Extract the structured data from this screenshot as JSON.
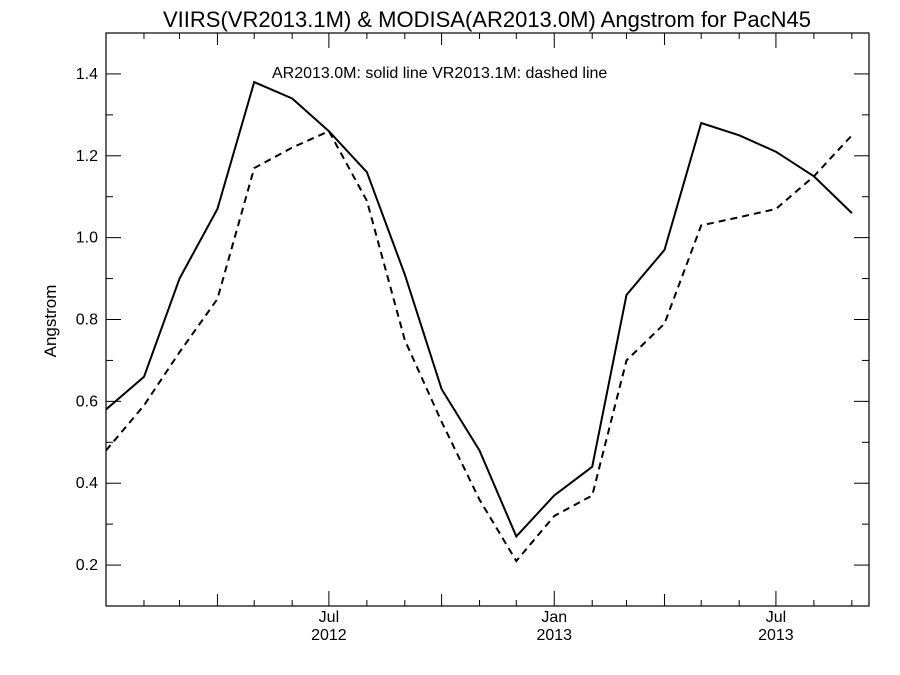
{
  "chart_data": {
    "type": "line",
    "title": "VIIRS(VR2013.1M) & MODISA(AR2013.0M)  Angstrom for PacN45",
    "annotation": "AR2013.0M: solid line   VR2013.1M: dashed line",
    "xlabel": "",
    "ylabel": "Angstrom",
    "xlim": [
      "2012-01-01",
      "2013-09-15"
    ],
    "ylim": [
      0.1,
      1.5
    ],
    "yticks": [
      0.2,
      0.4,
      0.6,
      0.8,
      1.0,
      1.2,
      1.4
    ],
    "ytick_labels": [
      "0.2",
      "0.4",
      "0.6",
      "0.8",
      "1.0",
      "1.2",
      "1.4"
    ],
    "xticks": [
      {
        "date": "2012-07-01",
        "month": "Jul",
        "year": "2012"
      },
      {
        "date": "2013-01-01",
        "month": "Jan",
        "year": "2013"
      },
      {
        "date": "2013-07-01",
        "month": "Jul",
        "year": "2013"
      }
    ],
    "grid": false,
    "x": [
      "2012-01-01",
      "2012-02-01",
      "2012-03-01",
      "2012-04-01",
      "2012-05-01",
      "2012-06-01",
      "2012-07-01",
      "2012-08-01",
      "2012-09-01",
      "2012-10-01",
      "2012-11-01",
      "2012-12-01",
      "2013-01-01",
      "2013-02-01",
      "2013-03-01",
      "2013-04-01",
      "2013-05-01",
      "2013-06-01",
      "2013-07-01",
      "2013-08-01",
      "2013-09-01"
    ],
    "series": [
      {
        "name": "AR2013.0M",
        "style": "solid",
        "values": [
          0.58,
          0.66,
          0.9,
          1.07,
          1.38,
          1.34,
          1.26,
          1.16,
          0.91,
          0.63,
          0.48,
          0.27,
          0.37,
          0.44,
          0.86,
          0.97,
          1.28,
          1.25,
          1.21,
          1.15,
          1.06
        ]
      },
      {
        "name": "VR2013.1M",
        "style": "dashed",
        "values": [
          0.48,
          0.59,
          0.72,
          0.85,
          1.17,
          1.22,
          1.26,
          1.09,
          0.75,
          0.55,
          0.36,
          0.21,
          0.32,
          0.37,
          0.7,
          0.79,
          1.03,
          1.05,
          1.07,
          1.15,
          1.25
        ]
      }
    ]
  }
}
